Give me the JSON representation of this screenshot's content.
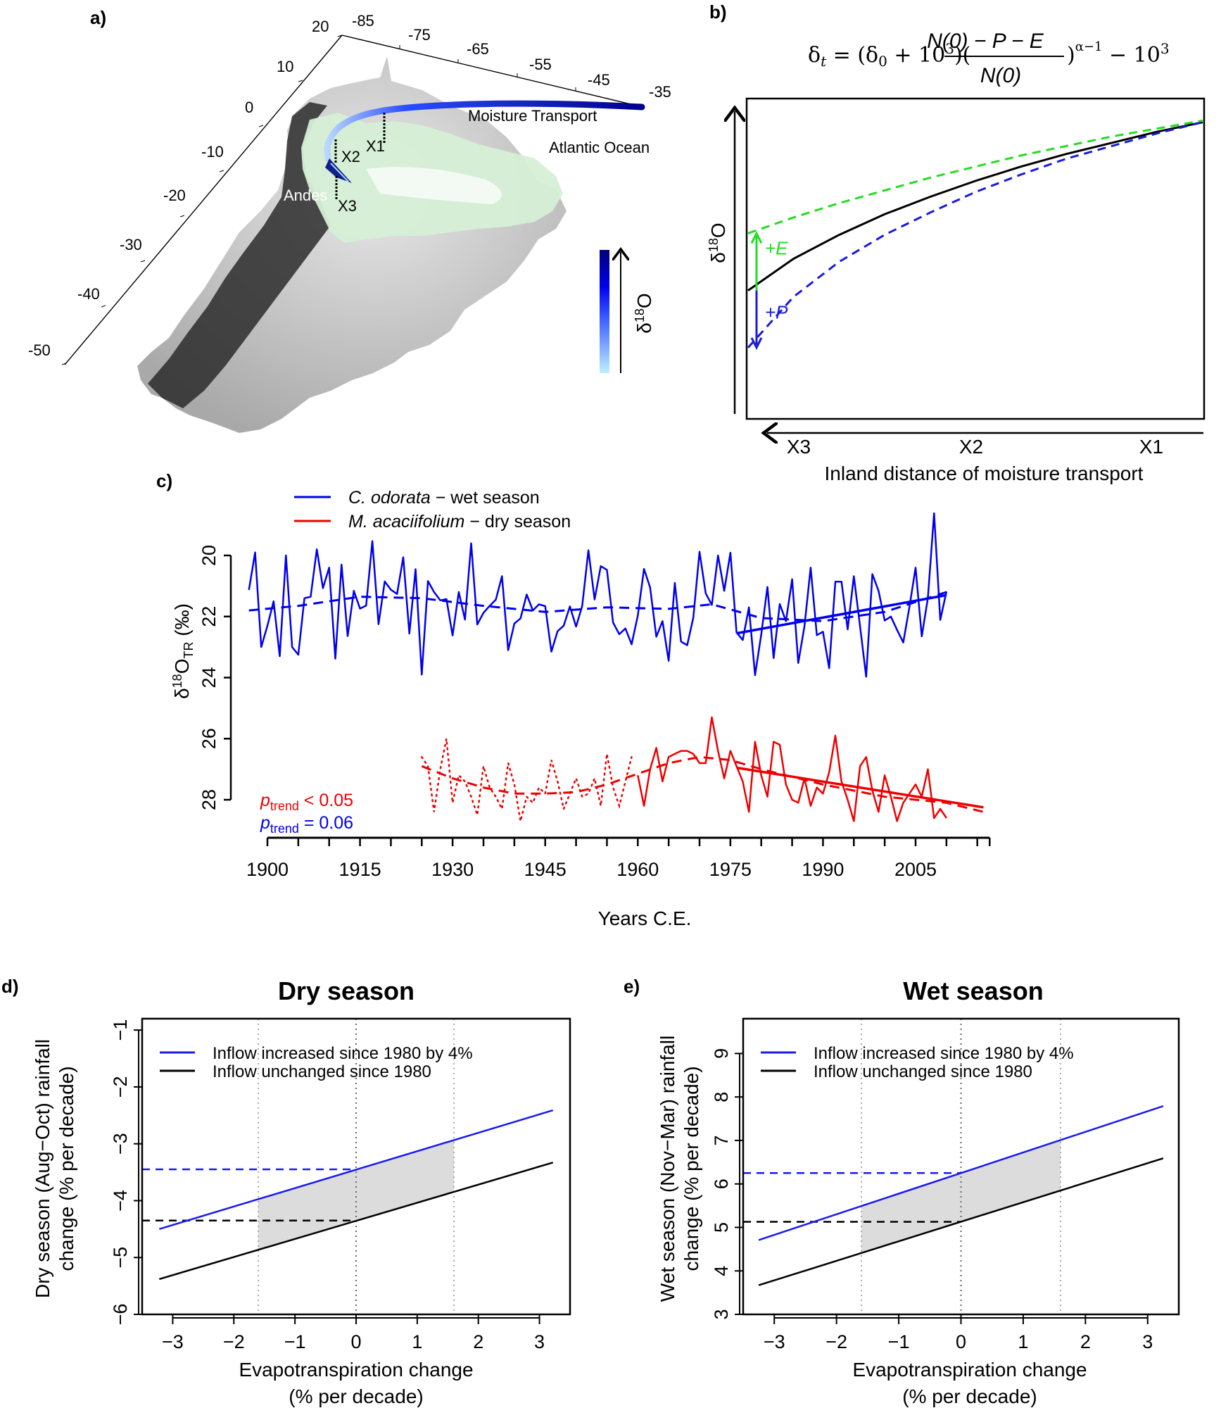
{
  "figure": {
    "panels": [
      "a)",
      "b)",
      "c)",
      "d)",
      "e)"
    ]
  },
  "panel_a": {
    "label": "a)",
    "type": "3d-elevation-map",
    "lat_ticks": [
      "20",
      "10",
      "0",
      "-10",
      "-20",
      "-30",
      "-40",
      "-50"
    ],
    "lon_ticks": [
      "-85",
      "-75",
      "-65",
      "-55",
      "-45",
      "-35"
    ],
    "annotations": {
      "moisture_transport": "Moisture Transport",
      "ocean": "Atlantic Ocean",
      "andes": "Andes",
      "x1": "X1",
      "x2": "X2",
      "x3": "X3"
    },
    "colorbar_label": "δ18O",
    "colorbar_label_base": "δ",
    "colorbar_label_sup": "18",
    "colorbar_label_tail": "O",
    "colors": {
      "transport_dark": "#00008b",
      "transport_light": "#a8e4ff",
      "amazon_green": "#cfe9cf"
    }
  },
  "chart_data": [
    {
      "panel": "b",
      "type": "line",
      "title": "δt = (δ0 + 10^3)((N(0) − P − E)/N(0))^(α−1) − 10^3",
      "formula": {
        "lhs": "δ",
        "lhs_sub": "t",
        "eq": " = (δ",
        "d0_sub": "0",
        "plus": " + 10",
        "exp3": "3",
        "paren": ")(",
        "numerator": "N(0) − P − E",
        "denominator": "N(0)",
        "close": ")",
        "alpha": "α−1",
        "minus": " − 10",
        "exp3b": "3"
      },
      "xlabel": "Inland distance of moisture transport",
      "ylabel": "δ18O",
      "ylabel_base": "δ",
      "ylabel_sup": "18",
      "ylabel_tail": "O",
      "x_ticks": [
        "X3",
        "X2",
        "X1"
      ],
      "x_direction": "decreasing (X1 to X3)",
      "annotations": {
        "plus_e": "+E",
        "plus_p": "+P"
      },
      "series": [
        {
          "name": "baseline",
          "style": "solid",
          "color": "#000000",
          "x": [
            0,
            0.1,
            0.2,
            0.3,
            0.4,
            0.5,
            0.6,
            0.7,
            0.8,
            0.9,
            1.0
          ],
          "values": [
            0.4,
            0.5,
            0.575,
            0.64,
            0.695,
            0.745,
            0.79,
            0.83,
            0.865,
            0.9,
            0.93
          ]
        },
        {
          "name": "+E",
          "style": "dashed",
          "color": "#22dd22",
          "x": [
            0,
            0.1,
            0.2,
            0.3,
            0.4,
            0.5,
            0.6,
            0.7,
            0.8,
            0.9,
            1.0
          ],
          "values": [
            0.58,
            0.63,
            0.675,
            0.715,
            0.755,
            0.79,
            0.825,
            0.855,
            0.885,
            0.91,
            0.935
          ]
        },
        {
          "name": "+P",
          "style": "dashed",
          "color": "#1a1adc",
          "x": [
            0,
            0.1,
            0.2,
            0.3,
            0.4,
            0.5,
            0.6,
            0.7,
            0.8,
            0.9,
            1.0
          ],
          "values": [
            0.22,
            0.38,
            0.49,
            0.575,
            0.645,
            0.71,
            0.765,
            0.815,
            0.855,
            0.895,
            0.93
          ]
        }
      ],
      "ylim": [
        0,
        1
      ],
      "xlim": [
        0,
        1
      ]
    },
    {
      "panel": "c",
      "type": "line",
      "title": "",
      "xlabel": "Years C.E.",
      "ylabel": "δ18OTR (‰)",
      "ylabel_base": "δ",
      "ylabel_sup": "18",
      "ylabel_mid": "O",
      "ylabel_sub": "TR",
      "ylabel_unit": " (‰)",
      "y_inverted": true,
      "ylim": [
        18.3,
        29.2
      ],
      "xlim": [
        1896,
        2017
      ],
      "y_ticks": [
        20,
        22,
        24,
        26,
        28
      ],
      "x_ticks": [
        1900,
        1915,
        1930,
        1945,
        1960,
        1975,
        1990,
        2005
      ],
      "legend": [
        {
          "species": "C. odorata",
          "season": " − wet season",
          "color": "#0000ee"
        },
        {
          "species": "M. acaciifolium",
          "season": " − dry season",
          "color": "#ee0000"
        }
      ],
      "legend_position": "top-left",
      "p_labels": [
        {
          "p": "p",
          "sub": "trend",
          "rel": " < 0.05",
          "color": "#ee0000"
        },
        {
          "p": "p",
          "sub": "trend",
          "rel": " = 0.06",
          "color": "#0000ee"
        }
      ],
      "series": [
        {
          "name": "C. odorata - wet season",
          "color": "#0000ee",
          "start_year": 1897,
          "values": [
            21.13,
            19.9,
            23.0,
            22.3,
            21.5,
            23.3,
            20.0,
            23.0,
            23.25,
            21.4,
            21.35,
            19.8,
            21.07,
            20.4,
            23.38,
            20.3,
            22.64,
            21.16,
            21.74,
            21.64,
            19.53,
            22.25,
            20.85,
            21.12,
            21.26,
            20.06,
            22.56,
            20.45,
            23.9,
            20.84,
            21.2,
            21.47,
            21.43,
            22.62,
            21.2,
            22.1,
            19.6,
            22.26,
            21.88,
            21.65,
            21.45,
            20.68,
            23.1,
            22.23,
            22.06,
            21.28,
            21.8,
            21.6,
            21.66,
            23.15,
            22.48,
            22.3,
            21.67,
            22.33,
            21.65,
            19.83,
            21.44,
            20.35,
            20.47,
            22.2,
            22.58,
            22.39,
            22.91,
            21.97,
            20.44,
            21.05,
            22.66,
            22.15,
            23.45,
            20.9,
            22.82,
            22.94,
            22.03,
            19.88,
            21.24,
            21.62,
            20.0,
            21.16,
            19.91,
            22.52,
            22.77,
            21.7,
            23.92,
            22.59,
            21.03,
            23.36,
            21.59,
            22.15,
            20.78,
            23.52,
            22.32,
            20.4,
            22.61,
            22.5,
            23.69,
            20.86,
            20.86,
            22.42,
            20.68,
            22.32,
            23.97,
            20.61,
            21.16,
            22.13,
            22.0,
            22.44,
            22.85,
            21.7,
            20.4,
            22.65,
            21.39,
            18.62,
            22.11,
            21.18
          ],
          "smooth": {
            "years": [
              1897,
              1905,
              1915,
              1925,
              1935,
              1945,
              1955,
              1965,
              1972,
              1980,
              1990,
              2000,
              2010
            ],
            "values": [
              21.8,
              21.65,
              21.35,
              21.4,
              21.65,
              21.85,
              21.7,
              21.75,
              21.6,
              22.05,
              22.15,
              21.85,
              21.2
            ]
          },
          "trend": {
            "years": [
              1976,
              2010
            ],
            "values": [
              22.55,
              21.3
            ]
          }
        },
        {
          "name": "M. acaciifolium - dry season",
          "color": "#ee0000",
          "dotted_start_year": 1925,
          "dotted_values": [
            26.6,
            26.9,
            28.4,
            27.0,
            26.0,
            28.1,
            27.2,
            27.4,
            27.9,
            28.5,
            26.9,
            27.6,
            27.9,
            28.3,
            26.8,
            27.5,
            28.7,
            27.9,
            28.1,
            27.6,
            27.8,
            26.7,
            27.4,
            28.3,
            27.8,
            27.3,
            27.9,
            27.8,
            27.3,
            28.2,
            26.5,
            27.6,
            28.2,
            27.4,
            26.6
          ],
          "solid_start_year": 1960,
          "solid_values": [
            27.2,
            28.2,
            27.0,
            26.3,
            27.4,
            26.6,
            26.5,
            26.4,
            26.4,
            26.5,
            26.8,
            26.8,
            25.3,
            26.4,
            27.3,
            26.4,
            26.9,
            27.4,
            28.4,
            26.1,
            27.2,
            27.9,
            26.1,
            26.2,
            27.5,
            28.0,
            28.1,
            27.3,
            28.2,
            27.6,
            27.8,
            27.1,
            25.9,
            27.4,
            28.0,
            28.7,
            26.9,
            26.6,
            27.7,
            28.4,
            27.2,
            27.9,
            28.7,
            28.1,
            27.8,
            27.5,
            27.9,
            27.0,
            28.6,
            28.3,
            28.6
          ],
          "smooth": {
            "years": [
              1925,
              1930,
              1935,
              1940,
              1945,
              1950,
              1955,
              1960,
              1965,
              1970,
              1975,
              1980,
              1990,
              2000,
              2010,
              2016
            ],
            "values": [
              26.9,
              27.3,
              27.6,
              27.8,
              27.8,
              27.75,
              27.5,
              27.15,
              26.8,
              26.6,
              26.7,
              27.0,
              27.5,
              27.9,
              28.1,
              28.4
            ]
          },
          "trend": {
            "years": [
              1976,
              2016
            ],
            "values": [
              26.95,
              28.25
            ]
          }
        }
      ]
    },
    {
      "panel": "d",
      "type": "line",
      "title": "Dry season",
      "xlabel": "Evapotranspiration change",
      "xlabel2": "(% per decade)",
      "ylabel": "Dry season (Aug−Oct) rainfall",
      "ylabel2": "change (%  per decade)",
      "xlim": [
        -3.5,
        3.5
      ],
      "ylim": [
        -6,
        -0.8
      ],
      "x_ticks": [
        "−3",
        "−2",
        "−1",
        "0",
        "1",
        "2",
        "3"
      ],
      "x_tick_values": [
        -3,
        -2,
        -1,
        0,
        1,
        2,
        3
      ],
      "y_ticks": [
        "−6",
        "−5",
        "−4",
        "−3",
        "−2",
        "−1"
      ],
      "y_tick_values": [
        -6,
        -5,
        -4,
        -3,
        -2,
        -1
      ],
      "vlines": [
        -1.6,
        0,
        1.6
      ],
      "shade_range": [
        -1.6,
        1.6
      ],
      "legend_position": "top-left",
      "series": [
        {
          "name": "Inflow increased since 1980 by 4%",
          "color": "#1a1aee",
          "x": [
            -3.22,
            3.22
          ],
          "values": [
            -4.5,
            -2.41
          ],
          "hline_at_zero": -3.45
        },
        {
          "name": "Inflow unchanged since 1980",
          "color": "#000000",
          "x": [
            -3.22,
            3.22
          ],
          "values": [
            -5.38,
            -3.33
          ],
          "hline_at_zero": -4.35
        }
      ]
    },
    {
      "panel": "e",
      "type": "line",
      "title": "Wet season",
      "xlabel": "Evapotranspiration change",
      "xlabel2": "(% per decade)",
      "ylabel": "Wet season (Nov−Mar) rainfall",
      "ylabel2": "change (% per decade)",
      "xlim": [
        -3.5,
        3.5
      ],
      "ylim": [
        3,
        9.8
      ],
      "x_ticks": [
        "−3",
        "−2",
        "−1",
        "0",
        "1",
        "2",
        "3"
      ],
      "x_tick_values": [
        -3,
        -2,
        -1,
        0,
        1,
        2,
        3
      ],
      "y_ticks": [
        "3",
        "4",
        "5",
        "6",
        "7",
        "8",
        "9"
      ],
      "y_tick_values": [
        3,
        4,
        5,
        6,
        7,
        8,
        9
      ],
      "vlines": [
        -1.6,
        0,
        1.6
      ],
      "shade_range": [
        -1.6,
        1.6
      ],
      "legend_position": "top-left",
      "series": [
        {
          "name": "Inflow increased since 1980 by 4%",
          "color": "#1a1aee",
          "x": [
            -3.25,
            3.25
          ],
          "values": [
            4.71,
            7.79
          ],
          "hline_at_zero": 6.25
        },
        {
          "name": "Inflow unchanged since 1980",
          "color": "#000000",
          "x": [
            -3.25,
            3.25
          ],
          "values": [
            3.67,
            6.59
          ],
          "hline_at_zero": 5.13
        }
      ]
    }
  ]
}
